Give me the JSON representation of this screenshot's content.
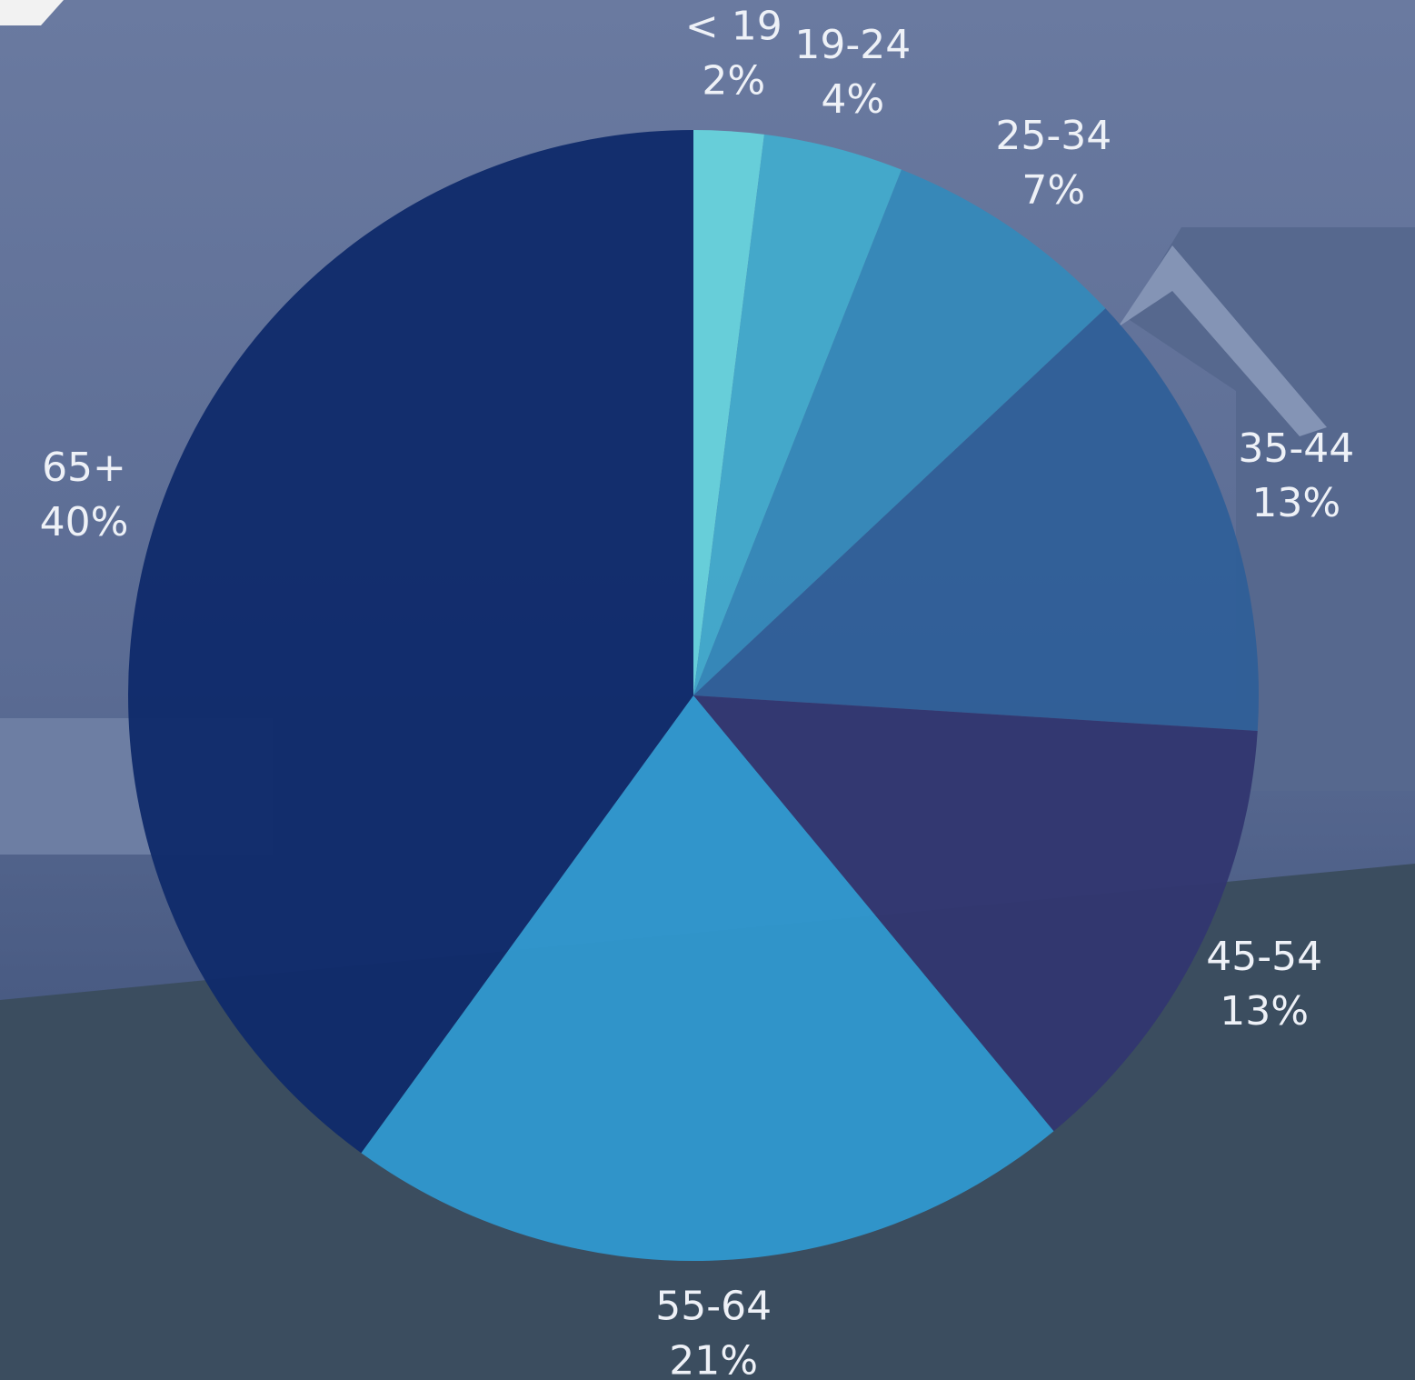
{
  "chart_data": {
    "type": "pie",
    "categories": [
      "< 19",
      "19-24",
      "25-34",
      "35-44",
      "45-54",
      "55-64",
      "65+"
    ],
    "values": [
      2,
      4,
      7,
      13,
      13,
      21,
      40
    ],
    "value_labels": [
      "2%",
      "4%",
      "7%",
      "13%",
      "13%",
      "21%",
      "40%"
    ],
    "colors": [
      "#67d3dc",
      "#42abcc",
      "#3589b9",
      "#2f5f98",
      "#313670",
      "#2f98cf",
      "#0f2a6a"
    ]
  }
}
